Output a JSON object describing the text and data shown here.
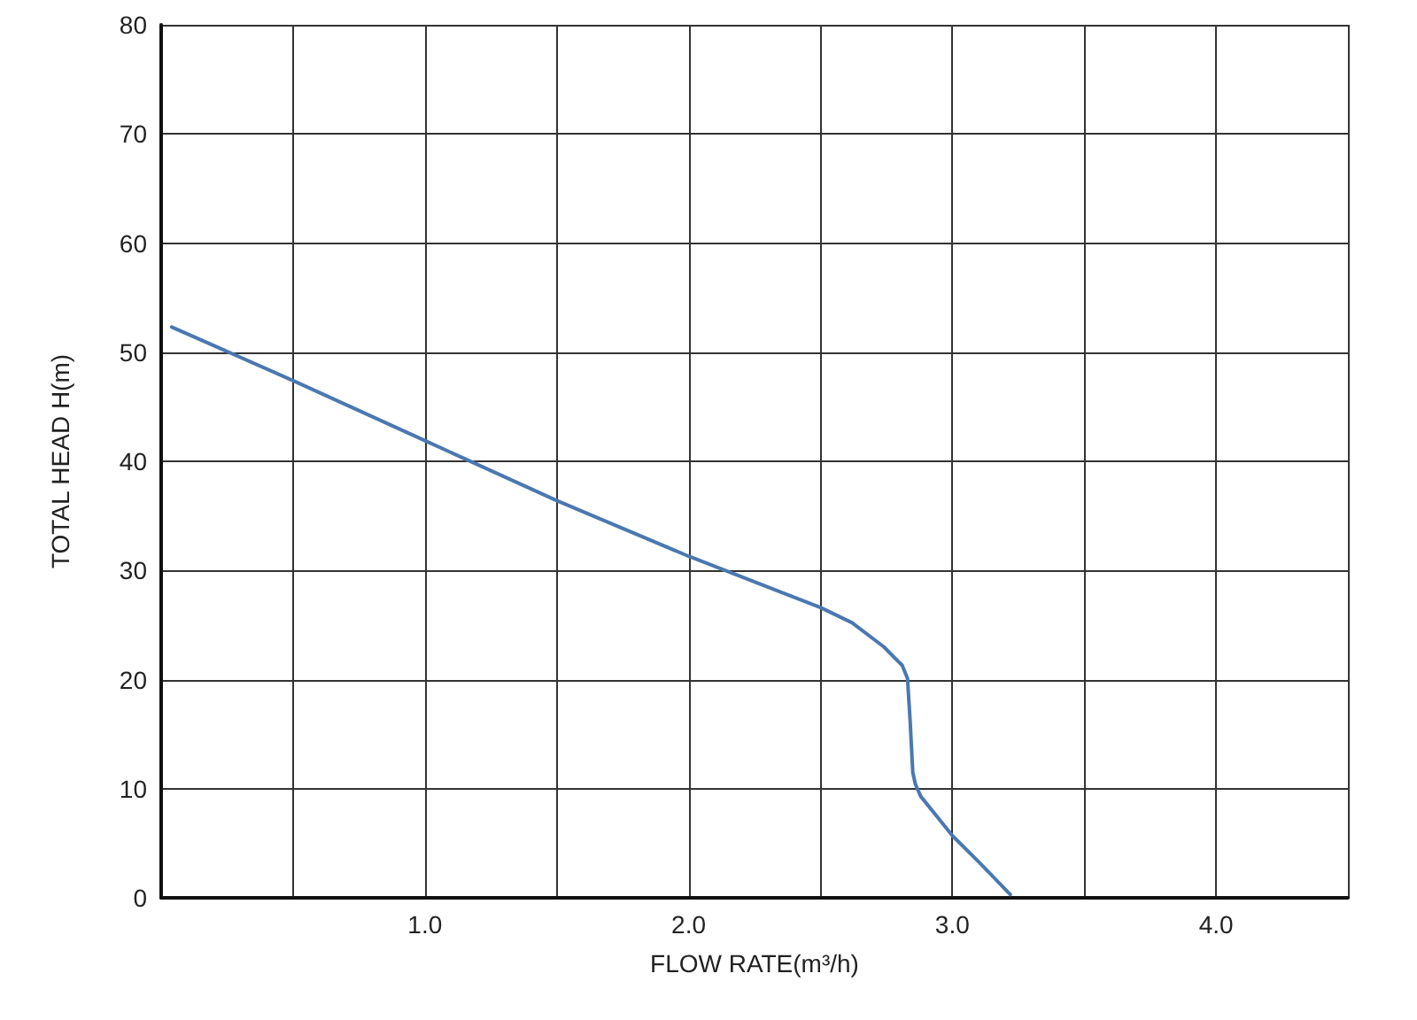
{
  "chart_data": {
    "type": "line",
    "xlabel": "FLOW RATE(m³/h)",
    "ylabel": "TOTAL HEAD H(m)",
    "series": [
      {
        "color": "#4a78b0",
        "x": [
          0.04,
          0.5,
          1.0,
          1.5,
          2.0,
          2.34,
          2.5,
          2.62,
          2.74,
          2.81,
          2.83,
          2.84,
          2.85,
          2.86,
          2.88,
          2.94,
          3.0,
          3.1,
          3.22
        ],
        "values": [
          52.3,
          47.4,
          41.9,
          36.4,
          31.3,
          28.1,
          26.6,
          25.2,
          23,
          21.3,
          20.1,
          16.2,
          11.5,
          10.4,
          9.3,
          7.5,
          5.7,
          3.3,
          0.3
        ]
      }
    ],
    "xlim": [
      0,
      4.5
    ],
    "xticks": [
      {
        "value": 0,
        "label": null
      },
      {
        "value": 0.5,
        "label": null
      },
      {
        "value": 1,
        "label": "1.0"
      },
      {
        "value": 1.5,
        "label": null
      },
      {
        "value": 2,
        "label": "2.0"
      },
      {
        "value": 2.5,
        "label": null
      },
      {
        "value": 3,
        "label": "3.0"
      },
      {
        "value": 3.5,
        "label": null
      },
      {
        "value": 4,
        "label": "4.0"
      },
      {
        "value": 4.5,
        "label": null
      }
    ],
    "ylim": [
      0,
      80
    ],
    "yticks": [
      0,
      10,
      20,
      30,
      40,
      50,
      60,
      70,
      80
    ],
    "grid": true,
    "marker": "none",
    "line_style": "solid"
  }
}
